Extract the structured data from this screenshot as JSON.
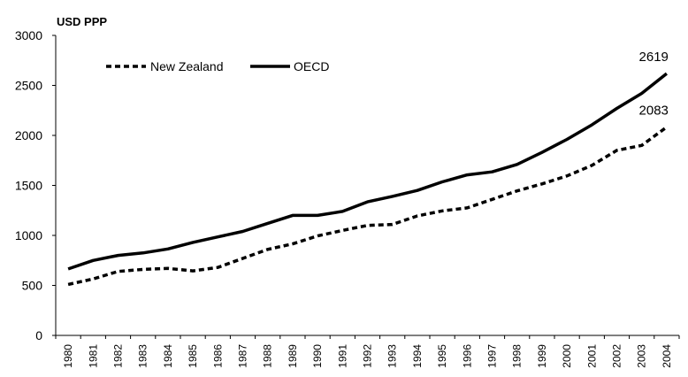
{
  "chart_data": {
    "type": "line",
    "title": "",
    "unit_label": "USD PPP",
    "xlabel": "",
    "ylabel": "",
    "ylim": [
      0,
      3000
    ],
    "yticks": [
      0,
      500,
      1000,
      1500,
      2000,
      2500,
      3000
    ],
    "grid": false,
    "legend_position": "top-left",
    "x": [
      "1980",
      "1981",
      "1982",
      "1983",
      "1984",
      "1985",
      "1986",
      "1987",
      "1988",
      "1989",
      "1990",
      "1991",
      "1992",
      "1993",
      "1994",
      "1995",
      "1996",
      "1997",
      "1998",
      "1999",
      "2000",
      "2001",
      "2002",
      "2003",
      "2004"
    ],
    "series": [
      {
        "name": "New Zealand",
        "style": "dashed",
        "color": "#000000",
        "values": [
          510,
          565,
          640,
          660,
          670,
          645,
          680,
          770,
          860,
          915,
          995,
          1050,
          1100,
          1110,
          1195,
          1245,
          1275,
          1360,
          1445,
          1515,
          1595,
          1700,
          1850,
          1900,
          2083
        ]
      },
      {
        "name": "OECD",
        "style": "solid",
        "color": "#000000",
        "values": [
          665,
          750,
          800,
          825,
          865,
          930,
          985,
          1040,
          1120,
          1200,
          1200,
          1240,
          1335,
          1390,
          1450,
          1535,
          1605,
          1635,
          1710,
          1830,
          1960,
          2105,
          2270,
          2420,
          2619
        ]
      }
    ],
    "annotations": [
      {
        "text": "2619",
        "x": "2004",
        "series": "OECD"
      },
      {
        "text": "2083",
        "x": "2004",
        "series": "New Zealand"
      }
    ]
  }
}
